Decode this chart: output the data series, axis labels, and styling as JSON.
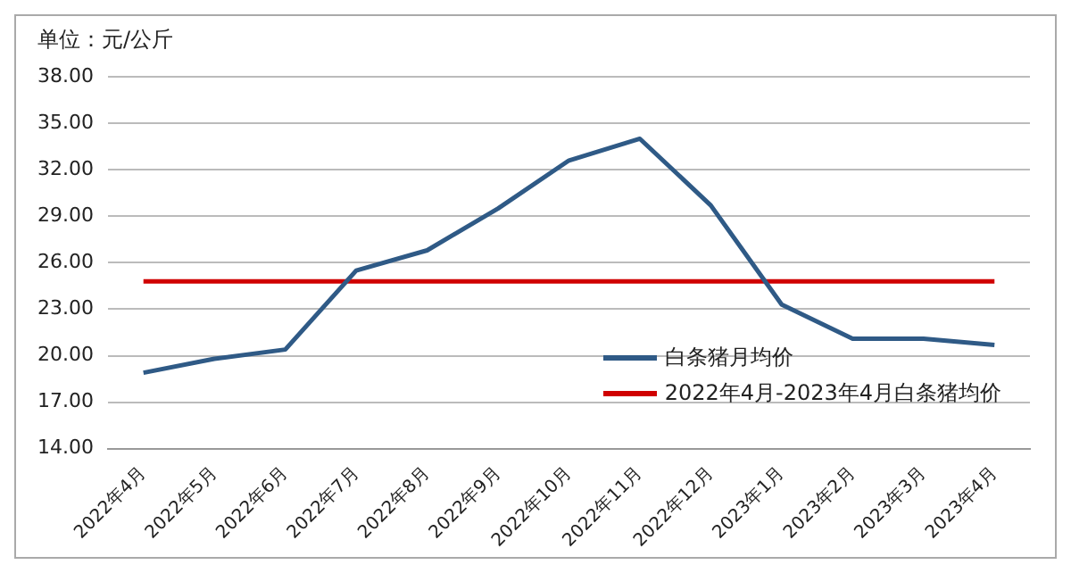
{
  "chart_data": {
    "type": "line",
    "ylabel": "单位：元/公斤",
    "categories": [
      "2022年4月",
      "2022年5月",
      "2022年6月",
      "2022年7月",
      "2022年8月",
      "2022年9月",
      "2022年10月",
      "2022年11月",
      "2022年12月",
      "2023年1月",
      "2023年2月",
      "2023年3月",
      "2023年4月"
    ],
    "series": [
      {
        "name": "白条猪月均价",
        "color": "#2f5a86",
        "values": [
          18.9,
          19.8,
          20.4,
          25.5,
          26.8,
          29.5,
          32.6,
          34.0,
          29.7,
          23.3,
          21.1,
          21.1,
          20.7
        ]
      },
      {
        "name": "2022年4月-2023年4月白条猪均价",
        "color": "#d00000",
        "values": [
          24.8,
          24.8,
          24.8,
          24.8,
          24.8,
          24.8,
          24.8,
          24.8,
          24.8,
          24.8,
          24.8,
          24.8,
          24.8
        ]
      }
    ],
    "ylim": [
      14,
      38
    ],
    "yticks": [
      {
        "value": 14,
        "label": "14.00"
      },
      {
        "value": 17,
        "label": "17.00"
      },
      {
        "value": 20,
        "label": "20.00"
      },
      {
        "value": 23,
        "label": "23.00"
      },
      {
        "value": 26,
        "label": "26.00"
      },
      {
        "value": 29,
        "label": "29.00"
      },
      {
        "value": 32,
        "label": "32.00"
      },
      {
        "value": 35,
        "label": "35.00"
      },
      {
        "value": 38,
        "label": "38.00"
      }
    ],
    "grid": "y",
    "legend": "bottom right",
    "marker": "none",
    "line_style": "solid"
  }
}
